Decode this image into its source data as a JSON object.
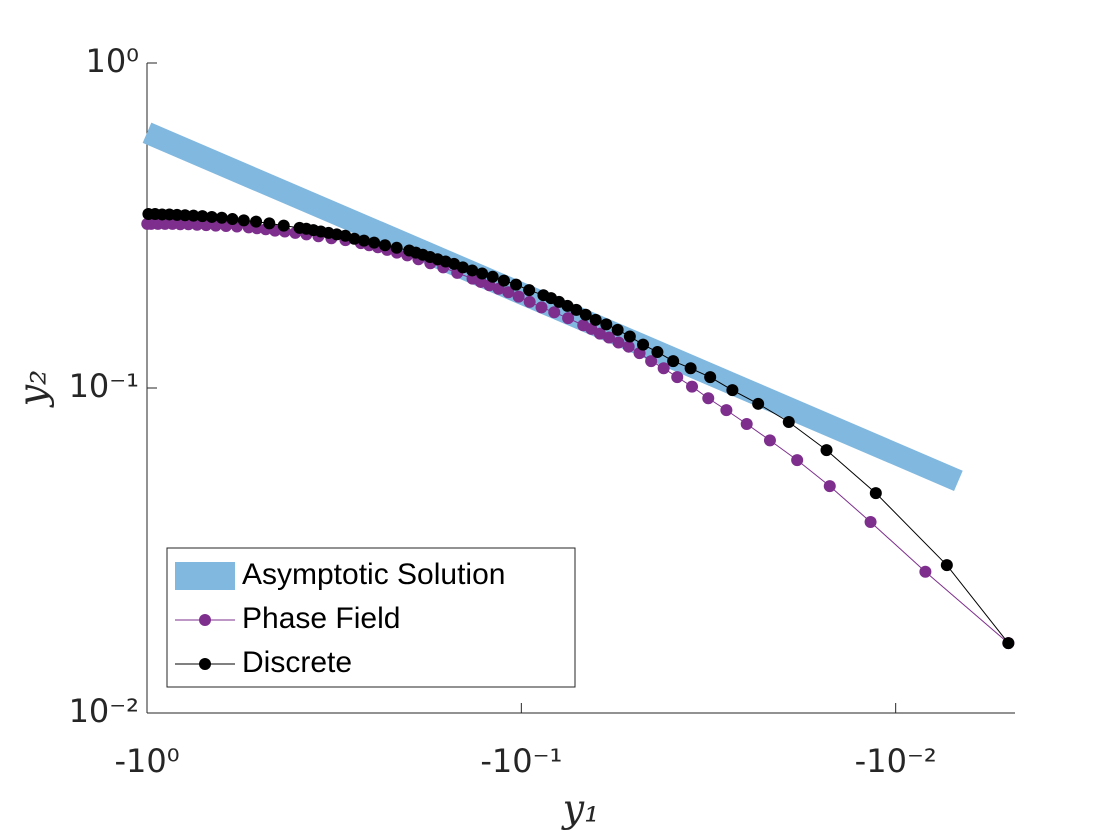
{
  "chart_data": {
    "type": "line",
    "xlabel": "y₁",
    "ylabel": "y₂",
    "xscale": "log",
    "yscale": "log",
    "xlim": [
      -1,
      -0.0048
    ],
    "ylim": [
      0.01,
      1
    ],
    "xticks": [
      {
        "value": -1,
        "label": "-10⁰"
      },
      {
        "value": -0.1,
        "label": "-10⁻¹"
      },
      {
        "value": -0.01,
        "label": "-10⁻²"
      }
    ],
    "yticks": [
      {
        "value": 0.01,
        "label": "10⁻²"
      },
      {
        "value": 0.1,
        "label": "10⁻¹"
      },
      {
        "value": 1,
        "label": "10⁰"
      }
    ],
    "legend": "lower left",
    "series": [
      {
        "name": "Asymptotic Solution",
        "color": "#80b8e0",
        "style": "band",
        "x": [
          -1,
          -0.0068
        ],
        "values": [
          0.61,
          0.0518
        ]
      },
      {
        "name": "Phase Field",
        "color": "#7e2f8e",
        "style": "line-markers",
        "x": [
          -0.005,
          -0.00833,
          -0.01167,
          -0.015,
          -0.01833,
          -0.02167,
          -0.025,
          -0.02833,
          -0.03167,
          -0.035,
          -0.03833,
          -0.04167,
          -0.045,
          -0.04833,
          -0.05167,
          -0.055,
          -0.05833,
          -0.06167,
          -0.065,
          -0.06833,
          -0.075,
          -0.08167,
          -0.08833,
          -0.095,
          -0.10167,
          -0.10833,
          -0.115,
          -0.12167,
          -0.12833,
          -0.135,
          -0.14833,
          -0.16167,
          -0.175,
          -0.18833,
          -0.20167,
          -0.215,
          -0.22833,
          -0.24167,
          -0.255,
          -0.26833,
          -0.295,
          -0.32167,
          -0.34833,
          -0.375,
          -0.40167,
          -0.42833,
          -0.455,
          -0.48167,
          -0.50833,
          -0.535,
          -0.575,
          -0.615,
          -0.655,
          -0.695,
          -0.735,
          -0.775,
          -0.815,
          -0.855,
          -0.895,
          -0.935,
          -0.975,
          -0.99833
        ],
        "values": [
          0.0164,
          0.0272,
          0.0387,
          0.0499,
          0.06,
          0.069,
          0.0775,
          0.0855,
          0.093,
          0.101,
          0.108,
          0.115,
          0.121,
          0.128,
          0.134,
          0.138,
          0.143,
          0.147,
          0.152,
          0.156,
          0.164,
          0.171,
          0.177,
          0.184,
          0.191,
          0.197,
          0.202,
          0.207,
          0.212,
          0.217,
          0.226,
          0.235,
          0.242,
          0.249,
          0.256,
          0.261,
          0.266,
          0.271,
          0.275,
          0.279,
          0.285,
          0.289,
          0.293,
          0.297,
          0.3,
          0.303,
          0.305,
          0.308,
          0.31,
          0.312,
          0.314,
          0.315,
          0.316,
          0.317,
          0.318,
          0.319,
          0.319,
          0.32,
          0.32,
          0.32,
          0.32,
          0.32
        ]
      },
      {
        "name": "Discrete",
        "color": "#000000",
        "style": "line-markers",
        "x": [
          -0.005,
          -0.0073,
          -0.0113,
          -0.0153,
          -0.0193,
          -0.0233,
          -0.0273,
          -0.0313,
          -0.0353,
          -0.0393,
          -0.0433,
          -0.0473,
          -0.0513,
          -0.0553,
          -0.0593,
          -0.0633,
          -0.0673,
          -0.0713,
          -0.0753,
          -0.0793,
          -0.0833,
          -0.0873,
          -0.0953,
          -0.1033,
          -0.1113,
          -0.1193,
          -0.1273,
          -0.1353,
          -0.1433,
          -0.1513,
          -0.1593,
          -0.1673,
          -0.1753,
          -0.1833,
          -0.1913,
          -0.1993,
          -0.2153,
          -0.2313,
          -0.2473,
          -0.2633,
          -0.2793,
          -0.2953,
          -0.3113,
          -0.3273,
          -0.3433,
          -0.3593,
          -0.3753,
          -0.3913,
          -0.4313,
          -0.4713,
          -0.5113,
          -0.5513,
          -0.5913,
          -0.6313,
          -0.6713,
          -0.7113,
          -0.7513,
          -0.7913,
          -0.8313,
          -0.8713,
          -0.9113,
          -0.9513,
          -0.9913
        ],
        "values": [
          0.0164,
          0.0285,
          0.0475,
          0.0644,
          0.0786,
          0.0894,
          0.0985,
          0.108,
          0.115,
          0.121,
          0.129,
          0.136,
          0.144,
          0.151,
          0.157,
          0.162,
          0.168,
          0.174,
          0.179,
          0.184,
          0.189,
          0.193,
          0.2,
          0.208,
          0.214,
          0.22,
          0.225,
          0.23,
          0.235,
          0.241,
          0.245,
          0.249,
          0.253,
          0.257,
          0.261,
          0.265,
          0.27,
          0.275,
          0.28,
          0.284,
          0.288,
          0.294,
          0.297,
          0.3,
          0.303,
          0.306,
          0.309,
          0.311,
          0.316,
          0.321,
          0.325,
          0.328,
          0.331,
          0.334,
          0.336,
          0.338,
          0.339,
          0.34,
          0.341,
          0.342,
          0.342,
          0.343,
          0.343
        ]
      }
    ]
  }
}
